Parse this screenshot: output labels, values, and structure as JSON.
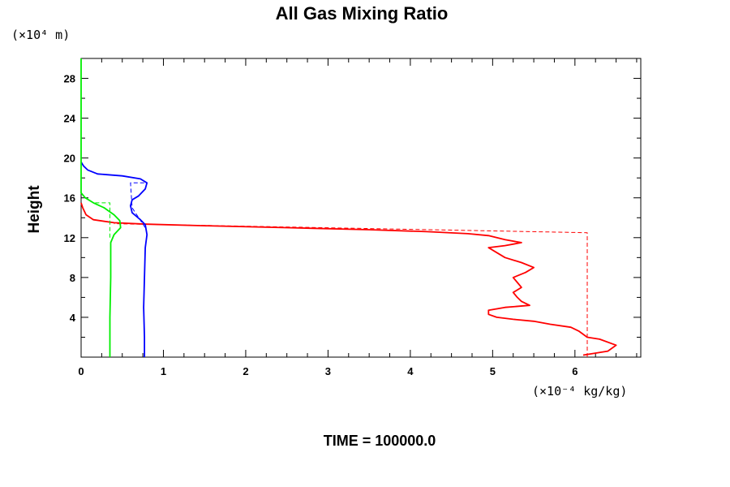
{
  "chart_data": {
    "type": "line",
    "title": "All Gas Mixing Ratio",
    "ylabel": "Height",
    "yunit": "(×10⁴ m)",
    "xunit": "(×10⁻⁴ kg/kg)",
    "footer": "TIME = 100000.0",
    "xlim": [
      0,
      6.8
    ],
    "ylim": [
      0,
      30
    ],
    "xticks": [
      0,
      1,
      2,
      3,
      4,
      5,
      6
    ],
    "yticks": [
      4,
      8,
      12,
      16,
      20,
      24,
      28
    ],
    "series": [
      {
        "color": "#ff0000",
        "style": "solid",
        "points": [
          [
            6.1,
            0.2
          ],
          [
            6.4,
            0.6
          ],
          [
            6.5,
            1.2
          ],
          [
            6.3,
            1.8
          ],
          [
            6.15,
            2.0
          ],
          [
            6.05,
            2.6
          ],
          [
            5.95,
            3.0
          ],
          [
            5.7,
            3.3
          ],
          [
            5.5,
            3.6
          ],
          [
            5.25,
            3.8
          ],
          [
            5.05,
            4.0
          ],
          [
            4.95,
            4.3
          ],
          [
            4.95,
            4.7
          ],
          [
            5.15,
            5.0
          ],
          [
            5.45,
            5.2
          ],
          [
            5.35,
            5.6
          ],
          [
            5.3,
            6.0
          ],
          [
            5.25,
            6.5
          ],
          [
            5.35,
            7.0
          ],
          [
            5.3,
            7.5
          ],
          [
            5.25,
            8.0
          ],
          [
            5.4,
            8.5
          ],
          [
            5.5,
            9.0
          ],
          [
            5.35,
            9.5
          ],
          [
            5.15,
            10.0
          ],
          [
            5.05,
            10.5
          ],
          [
            4.95,
            11.0
          ],
          [
            5.15,
            11.2
          ],
          [
            5.35,
            11.5
          ],
          [
            5.15,
            11.8
          ],
          [
            4.95,
            12.2
          ],
          [
            4.7,
            12.4
          ],
          [
            4.2,
            12.6
          ],
          [
            3.5,
            12.8
          ],
          [
            2.5,
            13.0
          ],
          [
            1.5,
            13.2
          ],
          [
            0.8,
            13.35
          ],
          [
            0.4,
            13.5
          ],
          [
            0.15,
            13.8
          ],
          [
            0.06,
            14.3
          ],
          [
            0.02,
            15.0
          ],
          [
            0.0,
            15.5
          ]
        ]
      },
      {
        "color": "#ff0000",
        "style": "dashed",
        "points": [
          [
            6.15,
            0.0
          ],
          [
            6.15,
            12.5
          ],
          [
            0.4,
            13.4
          ]
        ]
      },
      {
        "color": "#0000ff",
        "style": "solid",
        "points": [
          [
            0.77,
            0.0
          ],
          [
            0.77,
            2.0
          ],
          [
            0.76,
            5.0
          ],
          [
            0.77,
            8.0
          ],
          [
            0.78,
            11.0
          ],
          [
            0.8,
            12.3
          ],
          [
            0.78,
            13.3
          ],
          [
            0.72,
            13.8
          ],
          [
            0.62,
            14.5
          ],
          [
            0.6,
            15.2
          ],
          [
            0.62,
            15.8
          ],
          [
            0.7,
            16.2
          ],
          [
            0.78,
            16.9
          ],
          [
            0.8,
            17.5
          ],
          [
            0.72,
            17.9
          ],
          [
            0.5,
            18.2
          ],
          [
            0.2,
            18.4
          ],
          [
            0.08,
            18.8
          ],
          [
            0.03,
            19.2
          ],
          [
            0.0,
            19.6
          ]
        ]
      },
      {
        "color": "#0000ff",
        "style": "dashed",
        "points": [
          [
            0.78,
            13.0
          ],
          [
            0.62,
            15.0
          ],
          [
            0.6,
            17.5
          ],
          [
            0.8,
            17.5
          ]
        ]
      },
      {
        "color": "#00ee00",
        "style": "solid",
        "points": [
          [
            0.35,
            0.0
          ],
          [
            0.35,
            4.0
          ],
          [
            0.36,
            8.0
          ],
          [
            0.36,
            11.5
          ],
          [
            0.4,
            12.3
          ],
          [
            0.48,
            13.0
          ],
          [
            0.47,
            13.7
          ],
          [
            0.4,
            14.3
          ],
          [
            0.28,
            15.0
          ],
          [
            0.15,
            15.5
          ],
          [
            0.05,
            16.0
          ],
          [
            0.0,
            16.5
          ],
          [
            0.0,
            30.0
          ]
        ]
      },
      {
        "color": "#00ee00",
        "style": "dashed",
        "points": [
          [
            0.35,
            12.0
          ],
          [
            0.35,
            15.5
          ],
          [
            0.15,
            15.5
          ]
        ]
      }
    ]
  }
}
